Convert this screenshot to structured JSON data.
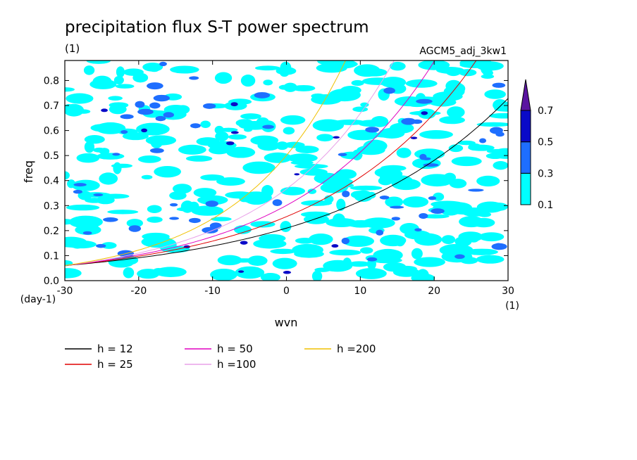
{
  "chart_data": {
    "type": "contour",
    "title": "precipitation flux S-T power spectrum",
    "unit_label": "(1)",
    "run_label": "AGCM5_adj_3kw1",
    "xlabel": "wvn",
    "xunit": "(1)",
    "ylabel": "freq",
    "yunit": "(day-1)",
    "xlim": [
      -30,
      30
    ],
    "ylim": [
      0.0,
      0.88
    ],
    "xticks": [
      -30,
      -20,
      -10,
      0,
      10,
      20,
      30
    ],
    "xtick_labels": [
      "-30",
      "-20",
      "-10",
      "0",
      "10",
      "20",
      "30"
    ],
    "yticks": [
      0.0,
      0.1,
      0.2,
      0.3,
      0.4,
      0.5,
      0.6,
      0.7,
      0.8
    ],
    "ytick_labels": [
      "0.0",
      "0.1",
      "0.2",
      "0.3",
      "0.4",
      "0.5",
      "0.6",
      "0.7",
      "0.8"
    ],
    "colorbar": {
      "levels": [
        0.1,
        0.3,
        0.5,
        0.7
      ],
      "level_labels": [
        "0.1",
        "0.3",
        "0.5",
        "0.7"
      ],
      "colors": [
        "#00ffff",
        "#1e6eff",
        "#0a0ac8",
        "#5a14a0"
      ],
      "extend": "max"
    },
    "series": [
      {
        "name": "h = 12",
        "color": "#000000",
        "h": 12
      },
      {
        "name": "h = 25",
        "color": "#e00000",
        "h": 25
      },
      {
        "name": "h = 50",
        "color": "#e000c0",
        "h": 50
      },
      {
        "name": "h =100",
        "color": "#e8a0e8",
        "h": 100
      },
      {
        "name": "h =200",
        "color": "#f0c000",
        "h": 200
      }
    ],
    "grid": false,
    "legend_position": "bottom"
  }
}
